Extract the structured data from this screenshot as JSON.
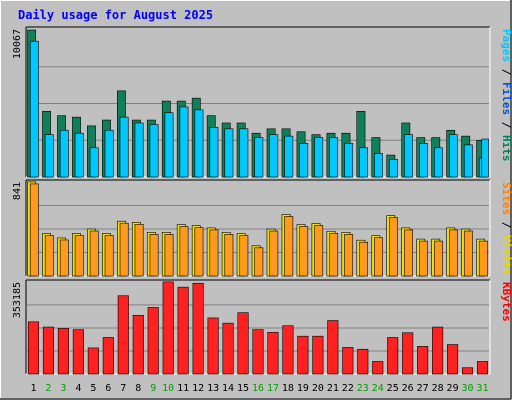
{
  "title": "Daily usage for August 2025",
  "chart_data": [
    {
      "type": "bar",
      "panel": "hits",
      "ymax_label": "10067",
      "ylim": [
        0,
        10067
      ],
      "right_labels": [
        {
          "text": "Pages",
          "color": "#00c8ff"
        },
        {
          "text": " / ",
          "color": "#000000"
        },
        {
          "text": "Files",
          "color": "#0050d0"
        },
        {
          "text": " / ",
          "color": "#000000"
        },
        {
          "text": "Hits",
          "color": "#008060"
        }
      ],
      "series": [
        {
          "name": "Hits",
          "color": "#10805a",
          "values": [
            10067,
            4500,
            4200,
            4100,
            3500,
            3900,
            5900,
            3900,
            3900,
            5200,
            5200,
            5400,
            4200,
            3700,
            3700,
            3000,
            3300,
            3300,
            3100,
            2900,
            3000,
            3000,
            4500,
            2700,
            1500,
            3700,
            2700,
            2700,
            3200,
            2800,
            2500
          ]
        },
        {
          "name": "Files",
          "color": "#00c8ff",
          "values": [
            9300,
            2900,
            3200,
            3000,
            2000,
            3200,
            4100,
            3700,
            3600,
            4400,
            4800,
            4600,
            3400,
            3300,
            3300,
            2700,
            2900,
            2800,
            2300,
            2700,
            2700,
            2300,
            2000,
            1600,
            1200,
            2900,
            2300,
            2000,
            2900,
            2200,
            1300
          ]
        },
        {
          "name": "Pages",
          "color": "#00c8ff",
          "values": [
            0,
            0,
            0,
            0,
            0,
            0,
            0,
            0,
            0,
            0,
            0,
            0,
            0,
            0,
            0,
            0,
            0,
            0,
            0,
            0,
            0,
            0,
            0,
            0,
            0,
            0,
            0,
            0,
            0,
            0,
            2600
          ]
        }
      ]
    },
    {
      "type": "bar",
      "panel": "visits",
      "ymax_label": "841",
      "ylim": [
        0,
        841
      ],
      "right_labels": [
        {
          "text": "Sites",
          "color": "#ff8000"
        },
        {
          "text": " / ",
          "color": "#000000"
        },
        {
          "text": "Visits",
          "color": "#e8d800"
        }
      ],
      "series": [
        {
          "name": "Visits",
          "color": "#f0e000",
          "values": [
            841,
            380,
            340,
            380,
            420,
            380,
            490,
            480,
            390,
            390,
            460,
            450,
            430,
            390,
            380,
            270,
            420,
            550,
            460,
            470,
            400,
            390,
            320,
            360,
            540,
            430,
            330,
            330,
            430,
            420,
            330
          ]
        },
        {
          "name": "Sites",
          "color": "#ff9a1e",
          "values": [
            841,
            380,
            340,
            380,
            420,
            380,
            490,
            480,
            390,
            390,
            460,
            450,
            430,
            390,
            380,
            270,
            420,
            550,
            460,
            470,
            400,
            390,
            320,
            360,
            540,
            430,
            330,
            330,
            430,
            420,
            330
          ]
        }
      ]
    },
    {
      "type": "bar",
      "panel": "kbytes",
      "ymax_label": "353185",
      "ylim": [
        0,
        353185
      ],
      "right_labels": [
        {
          "text": "KBytes",
          "color": "#ff0000"
        }
      ],
      "series": [
        {
          "name": "KBytes",
          "color": "#ff2020",
          "values": [
            200000,
            180000,
            175000,
            170000,
            100000,
            140000,
            300000,
            225000,
            255000,
            353185,
            333000,
            348000,
            215000,
            195000,
            235000,
            170000,
            160000,
            185000,
            145000,
            145000,
            205000,
            102000,
            95000,
            48000,
            140000,
            158000,
            106000,
            180000,
            113000,
            24000,
            48000
          ]
        }
      ]
    }
  ],
  "days": [
    "1",
    "2",
    "3",
    "4",
    "5",
    "6",
    "7",
    "8",
    "9",
    "10",
    "11",
    "12",
    "13",
    "14",
    "15",
    "16",
    "17",
    "18",
    "19",
    "20",
    "21",
    "22",
    "23",
    "24",
    "25",
    "26",
    "27",
    "28",
    "29",
    "30",
    "31"
  ],
  "weekend_days": [
    "2",
    "3",
    "9",
    "10",
    "16",
    "17",
    "23",
    "24",
    "30",
    "31"
  ],
  "colors": {
    "background": "#c0c0c0",
    "plot": "#c0c0c0",
    "title": "#0000ff",
    "weekday_label": "#000000",
    "weekend_label": "#00a000"
  }
}
